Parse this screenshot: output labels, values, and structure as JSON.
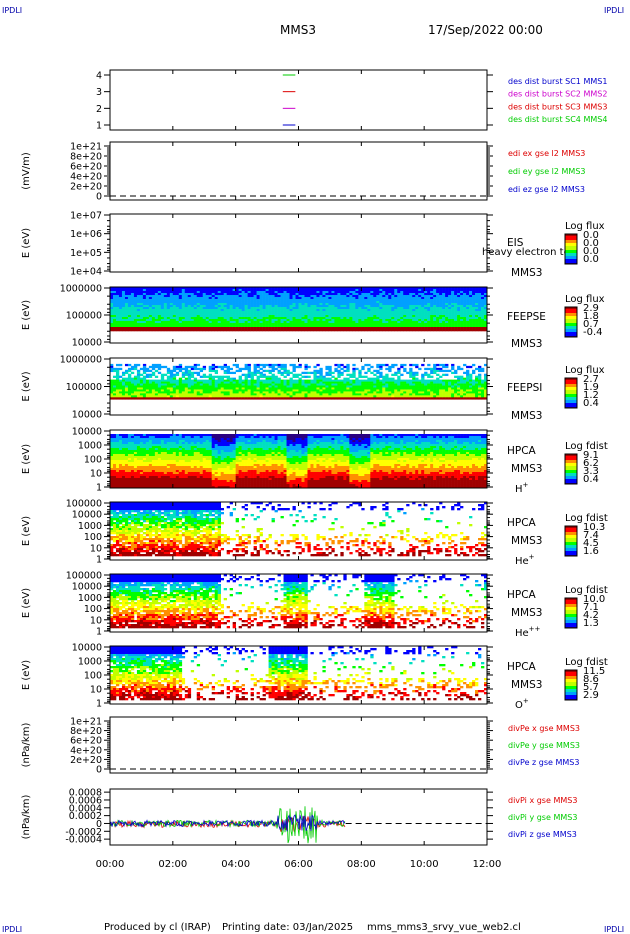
{
  "header": {
    "corner_left": "IPDLI",
    "corner_right": "IPDLI",
    "title": "MMS3",
    "date": "17/Sep/2022 00:00"
  },
  "footer": {
    "produced_by": "Produced by cl (IRAP)",
    "printing_date": "Printing date: 03/Jan/2025",
    "file": "mms_mms3_srvy_vue_web2.cl",
    "corner_left": "IPDLI",
    "corner_right": "IPDLI"
  },
  "colors": {
    "mms1": "#00cc00",
    "mms2": "#cc00cc",
    "mms3": "#dd0000",
    "mms4": "#0000cc",
    "x": "#dd0000",
    "y": "#00cc00",
    "z": "#0000cc",
    "colormap": [
      "#2a0080",
      "#0000ff",
      "#00a0ff",
      "#00e0c0",
      "#00ff00",
      "#c0ff00",
      "#ffff00",
      "#ff9000",
      "#ff0000",
      "#a00000"
    ]
  },
  "chart_data": {
    "type": "heatmap",
    "x_ticks": [
      "00:00",
      "02:00",
      "04:00",
      "06:00",
      "08:00",
      "10:00",
      "12:00"
    ],
    "x_range_hours": [
      0,
      12
    ],
    "panels": [
      {
        "id": "burst",
        "type": "line",
        "ylabel": "",
        "ticks": [
          "4",
          "3",
          "2",
          "1"
        ],
        "yrange": [
          0.7,
          4.3
        ],
        "segments": [
          {
            "value": 4,
            "color": "#00cc00",
            "x": [
              5.5,
              5.9
            ]
          },
          {
            "value": 3,
            "color": "#dd0000",
            "x": [
              5.5,
              5.9
            ]
          },
          {
            "value": 2,
            "color": "#cc00cc",
            "x": [
              5.5,
              5.9
            ]
          },
          {
            "value": 1,
            "color": "#0000cc",
            "x": [
              5.5,
              5.9
            ]
          }
        ],
        "legend": [
          {
            "text": "des dist burst SC1 MMS1",
            "color": "#0000cc"
          },
          {
            "text": "des dist burst SC2 MMS2",
            "color": "#cc00cc"
          },
          {
            "text": "des dist burst SC3 MMS3",
            "color": "#dd0000"
          },
          {
            "text": "des dist burst SC4 MMS4",
            "color": "#00cc00"
          }
        ]
      },
      {
        "id": "edi",
        "type": "line",
        "ylabel": "(mV/m)",
        "ticks": [
          "1e+21",
          "8e+20",
          "6e+20",
          "4e+20",
          "2e+20",
          "0"
        ],
        "dashed_zero": true,
        "legend": [
          {
            "text": "edi ex gse l2 MMS3",
            "color": "#dd0000"
          },
          {
            "text": "edi ey gse l2 MMS3",
            "color": "#00cc00"
          },
          {
            "text": "edi ez gse l2 MMS3",
            "color": "#0000cc"
          }
        ]
      },
      {
        "id": "eis",
        "type": "heatmap",
        "ylabel": "E (eV)",
        "ticks": [
          "1e+07",
          "1e+06",
          "1e+05",
          "1e+04"
        ],
        "instrument": [
          "EIS",
          "MMS3"
        ],
        "overlay_text": "heavy electron tof",
        "cbar_title": "Log flux",
        "cbar_ticks": [
          "0.0",
          "0.0",
          "0.0",
          "0.0"
        ],
        "data": "none"
      },
      {
        "id": "feepse",
        "type": "heatmap",
        "ylabel": "E (eV)",
        "ticks": [
          "1000000",
          "100000",
          "10000"
        ],
        "instrument": [
          "FEEPSE",
          "MMS3"
        ],
        "cbar_title": "Log flux",
        "cbar_ticks": [
          "2.9",
          "1.8",
          "0.7",
          "-0.4"
        ],
        "x_end_hours": 12
      },
      {
        "id": "feepsi",
        "type": "heatmap",
        "ylabel": "E (eV)",
        "ticks": [
          "1000000",
          "100000",
          "10000"
        ],
        "instrument": [
          "FEEPSI",
          "MMS3"
        ],
        "cbar_title": "Log flux",
        "cbar_ticks": [
          "2.7",
          "1.9",
          "1.2",
          "0.4"
        ],
        "x_end_hours": 12
      },
      {
        "id": "hpca_h",
        "type": "heatmap",
        "ylabel": "E (eV)",
        "ticks": [
          "10000",
          "1000",
          "100",
          "10",
          "1"
        ],
        "instrument": [
          "HPCA",
          "MMS3"
        ],
        "species": "H",
        "species_sup": "+",
        "cbar_title": "Log fdist",
        "cbar_ticks": [
          "9.1",
          "6.2",
          "3.3",
          "0.4"
        ],
        "x_end_hours": 12
      },
      {
        "id": "hpca_he1",
        "type": "heatmap",
        "ylabel": "E (eV)",
        "ticks": [
          "100000",
          "10000",
          "1000",
          "100",
          "10",
          "1"
        ],
        "instrument": [
          "HPCA",
          "MMS3"
        ],
        "species": "He",
        "species_sup": "+",
        "cbar_title": "Log fdist",
        "cbar_ticks": [
          "10.3",
          "7.4",
          "4.5",
          "1.6"
        ],
        "x_end_hours": 12
      },
      {
        "id": "hpca_he2",
        "type": "heatmap",
        "ylabel": "E (eV)",
        "ticks": [
          "100000",
          "10000",
          "1000",
          "100",
          "10",
          "1"
        ],
        "instrument": [
          "HPCA",
          "MMS3"
        ],
        "species": "He",
        "species_sup": "++",
        "cbar_title": "Log fdist",
        "cbar_ticks": [
          "10.0",
          "7.1",
          "4.2",
          "1.3"
        ],
        "x_end_hours": 12
      },
      {
        "id": "hpca_o",
        "type": "heatmap",
        "ylabel": "E (eV)",
        "ticks": [
          "10000",
          "1000",
          "100",
          "10",
          "1"
        ],
        "instrument": [
          "HPCA",
          "MMS3"
        ],
        "species": "O",
        "species_sup": "+",
        "cbar_title": "Log fdist",
        "cbar_ticks": [
          "11.5",
          "8.6",
          "5.7",
          "2.9"
        ],
        "x_end_hours": 12
      },
      {
        "id": "divpe",
        "type": "line",
        "ylabel": "(nPa/km)",
        "ticks": [
          "1e+21",
          "8e+20",
          "6e+20",
          "4e+20",
          "2e+20",
          "0"
        ],
        "dashed_zero": true,
        "legend": [
          {
            "text": "divPe x gse MMS3",
            "color": "#dd0000"
          },
          {
            "text": "divPe y gse MMS3",
            "color": "#00cc00"
          },
          {
            "text": "divPe z gse MMS3",
            "color": "#0000cc"
          }
        ]
      },
      {
        "id": "divpi",
        "type": "line",
        "ylabel": "(nPa/km)",
        "ticks": [
          "0.0008",
          "0.0006",
          "0.0004",
          "0.0002",
          "0",
          "-0.0002",
          "-0.0004"
        ],
        "yrange": [
          -0.00055,
          0.00088
        ],
        "dashed_zero": true,
        "x_end_hours": 7.5,
        "legend": [
          {
            "text": "divPi x gse MMS3",
            "color": "#dd0000"
          },
          {
            "text": "divPi y gse MMS3",
            "color": "#00cc00"
          },
          {
            "text": "divPi z gse MMS3",
            "color": "#0000cc"
          }
        ]
      }
    ]
  }
}
